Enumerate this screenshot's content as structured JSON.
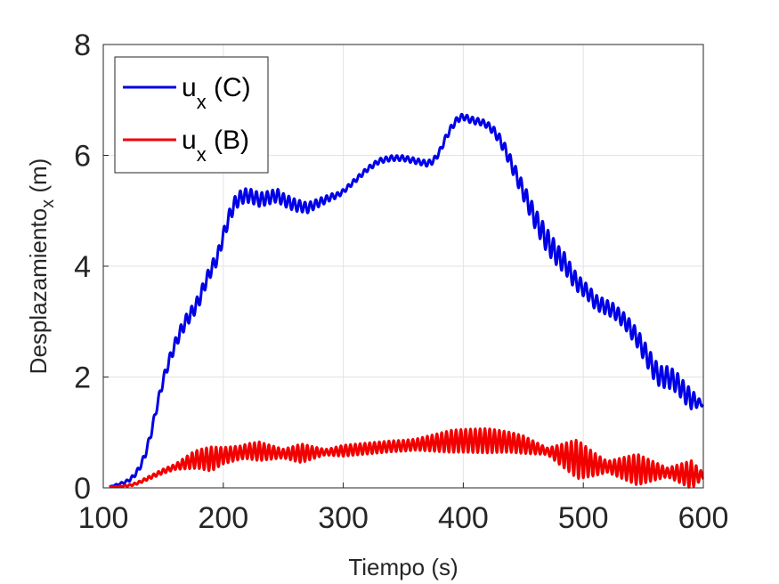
{
  "chart_data": {
    "type": "line",
    "xlabel": "Tiempo (s)",
    "ylabel": {
      "main": "Desplazamiento",
      "sub": "x",
      "unit": " (m)"
    },
    "xlim": [
      100,
      600
    ],
    "ylim": [
      0,
      8
    ],
    "xticks": [
      "100",
      "200",
      "300",
      "400",
      "500",
      "600"
    ],
    "yticks": [
      "0",
      "2",
      "4",
      "6",
      "8"
    ],
    "grid": true,
    "legend_position": "top-left",
    "series": [
      {
        "label_main": "u",
        "label_sub": "x",
        "label_rest": " (C)",
        "color": "#0000e6",
        "x": [
          105,
          110,
          115,
          120,
          125,
          130,
          135,
          140,
          145,
          150,
          155,
          160,
          165,
          170,
          175,
          180,
          185,
          190,
          195,
          200,
          205,
          210,
          215,
          220,
          225,
          230,
          235,
          240,
          245,
          250,
          255,
          260,
          265,
          270,
          275,
          280,
          285,
          290,
          295,
          300,
          310,
          320,
          330,
          340,
          350,
          360,
          370,
          375,
          380,
          385,
          390,
          395,
          400,
          405,
          410,
          415,
          420,
          425,
          430,
          435,
          440,
          445,
          450,
          455,
          460,
          465,
          470,
          475,
          480,
          485,
          490,
          495,
          500,
          505,
          510,
          515,
          520,
          525,
          530,
          535,
          540,
          545,
          550,
          555,
          560,
          565,
          570,
          575,
          580,
          585,
          590,
          595,
          600
        ],
        "y": [
          0.02,
          0.05,
          0.08,
          0.12,
          0.2,
          0.35,
          0.6,
          1.0,
          1.5,
          1.95,
          2.3,
          2.6,
          2.85,
          3.05,
          3.2,
          3.4,
          3.7,
          3.95,
          4.15,
          4.55,
          4.9,
          5.15,
          5.25,
          5.28,
          5.25,
          5.2,
          5.22,
          5.25,
          5.28,
          5.2,
          5.15,
          5.1,
          5.08,
          5.05,
          5.1,
          5.15,
          5.2,
          5.25,
          5.28,
          5.35,
          5.55,
          5.75,
          5.9,
          5.95,
          5.95,
          5.9,
          5.85,
          5.9,
          6.05,
          6.3,
          6.5,
          6.65,
          6.7,
          6.65,
          6.62,
          6.6,
          6.55,
          6.45,
          6.3,
          6.1,
          5.85,
          5.6,
          5.35,
          5.1,
          4.85,
          4.65,
          4.45,
          4.3,
          4.15,
          4.05,
          3.85,
          3.7,
          3.6,
          3.5,
          3.35,
          3.3,
          3.25,
          3.2,
          3.1,
          3.0,
          2.85,
          2.7,
          2.5,
          2.3,
          2.1,
          2.0,
          2.0,
          1.95,
          1.85,
          1.7,
          1.6,
          1.55,
          1.5
        ],
        "wiggle": [
          [
            105,
            0
          ],
          [
            170,
            0.12
          ],
          [
            200,
            0.12
          ],
          [
            220,
            0.13
          ],
          [
            260,
            0.11
          ],
          [
            300,
            0.04
          ],
          [
            360,
            0.05
          ],
          [
            420,
            0.06
          ],
          [
            440,
            0.12
          ],
          [
            470,
            0.22
          ],
          [
            500,
            0.14
          ],
          [
            530,
            0.13
          ],
          [
            560,
            0.2
          ],
          [
            590,
            0.18
          ],
          [
            600,
            0.02
          ]
        ],
        "wiggle_period": 4.5
      },
      {
        "label_main": "u",
        "label_sub": "x",
        "label_rest": " (B)",
        "color": "#f20000",
        "x": [
          105,
          110,
          115,
          120,
          125,
          130,
          135,
          140,
          145,
          150,
          155,
          160,
          165,
          170,
          175,
          180,
          185,
          190,
          195,
          200,
          205,
          210,
          215,
          220,
          225,
          230,
          240,
          250,
          260,
          270,
          280,
          290,
          300,
          310,
          320,
          330,
          340,
          350,
          360,
          370,
          380,
          390,
          400,
          410,
          420,
          430,
          440,
          450,
          460,
          470,
          480,
          490,
          500,
          510,
          520,
          530,
          540,
          550,
          560,
          570,
          580,
          590,
          600
        ],
        "y": [
          0.02,
          0.02,
          0.03,
          0.04,
          0.06,
          0.1,
          0.15,
          0.2,
          0.25,
          0.3,
          0.34,
          0.38,
          0.42,
          0.46,
          0.5,
          0.52,
          0.52,
          0.52,
          0.55,
          0.58,
          0.6,
          0.62,
          0.64,
          0.66,
          0.66,
          0.66,
          0.64,
          0.62,
          0.62,
          0.63,
          0.64,
          0.65,
          0.67,
          0.69,
          0.71,
          0.73,
          0.75,
          0.76,
          0.78,
          0.8,
          0.82,
          0.84,
          0.85,
          0.85,
          0.85,
          0.84,
          0.82,
          0.78,
          0.72,
          0.66,
          0.6,
          0.55,
          0.48,
          0.42,
          0.38,
          0.36,
          0.34,
          0.32,
          0.3,
          0.28,
          0.26,
          0.24,
          0.22
        ],
        "wiggle": [
          [
            105,
            0
          ],
          [
            160,
            0.05
          ],
          [
            175,
            0.15
          ],
          [
            190,
            0.22
          ],
          [
            200,
            0.15
          ],
          [
            215,
            0.12
          ],
          [
            230,
            0.17
          ],
          [
            250,
            0.08
          ],
          [
            265,
            0.17
          ],
          [
            285,
            0.05
          ],
          [
            300,
            0.1
          ],
          [
            320,
            0.1
          ],
          [
            360,
            0.1
          ],
          [
            390,
            0.2
          ],
          [
            420,
            0.22
          ],
          [
            450,
            0.16
          ],
          [
            470,
            0.06
          ],
          [
            495,
            0.35
          ],
          [
            520,
            0.1
          ],
          [
            545,
            0.28
          ],
          [
            570,
            0.08
          ],
          [
            590,
            0.25
          ],
          [
            600,
            0.05
          ]
        ],
        "wiggle_period": 4.0
      }
    ]
  }
}
